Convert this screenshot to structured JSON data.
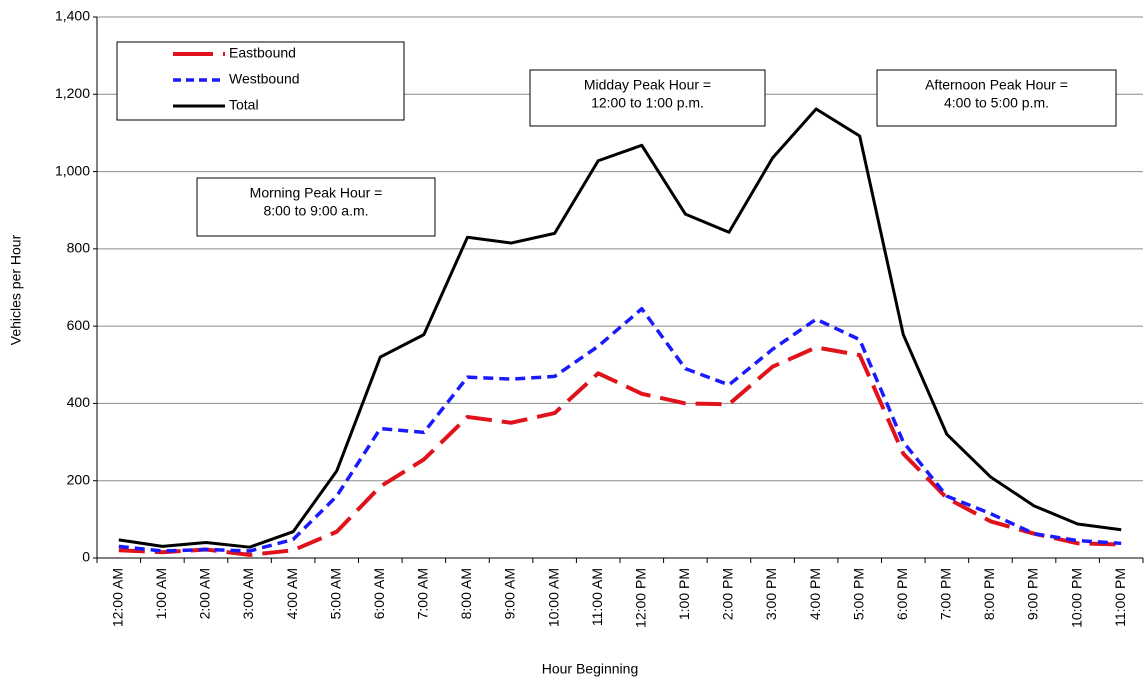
{
  "chart_data": {
    "type": "line",
    "x_label": "Hour Beginning",
    "y_label": "Vehicles per Hour",
    "categories": [
      "12:00 AM",
      "1:00 AM",
      "2:00 AM",
      "3:00 AM",
      "4:00 AM",
      "5:00 AM",
      "6:00 AM",
      "7:00 AM",
      "8:00 AM",
      "9:00 AM",
      "10:00 AM",
      "11:00 AM",
      "12:00 PM",
      "1:00 PM",
      "2:00 PM",
      "3:00 PM",
      "4:00 PM",
      "5:00 PM",
      "6:00 PM",
      "7:00 PM",
      "8:00 PM",
      "9:00 PM",
      "10:00 PM",
      "11:00 PM"
    ],
    "series": [
      {
        "name": "Eastbound",
        "color": "#e0121b",
        "values": [
          20,
          15,
          22,
          8,
          20,
          68,
          185,
          255,
          365,
          350,
          375,
          478,
          425,
          400,
          398,
          495,
          545,
          525,
          270,
          155,
          95,
          63,
          38,
          35
        ]
      },
      {
        "name": "Westbound",
        "color": "#1a1aff",
        "values": [
          30,
          18,
          22,
          18,
          48,
          160,
          335,
          325,
          468,
          463,
          470,
          548,
          645,
          490,
          448,
          540,
          618,
          565,
          300,
          160,
          115,
          63,
          45,
          38
        ]
      },
      {
        "name": "Total",
        "color": "#000000",
        "values": [
          47,
          30,
          40,
          28,
          68,
          225,
          520,
          578,
          830,
          815,
          840,
          1028,
          1068,
          890,
          843,
          1035,
          1162,
          1092,
          578,
          320,
          210,
          135,
          88,
          73
        ]
      }
    ],
    "ylim": [
      0,
      1400
    ],
    "yticks": [
      0,
      200,
      400,
      600,
      800,
      {
        "value": 1000,
        "label": "1,000"
      },
      {
        "value": 1200,
        "label": "1,200"
      },
      {
        "value": 1400,
        "label": "1,400"
      }
    ],
    "grid": true,
    "legend": "upper left",
    "annotations": [
      {
        "lines": [
          "Morning Peak Hour =",
          "8:00 to 9:00 a.m."
        ]
      },
      {
        "lines": [
          "Midday Peak Hour =",
          "12:00 to 1:00 p.m."
        ]
      },
      {
        "lines": [
          "Afternoon Peak Hour =",
          "4:00 to 5:00 p.m."
        ]
      }
    ]
  }
}
